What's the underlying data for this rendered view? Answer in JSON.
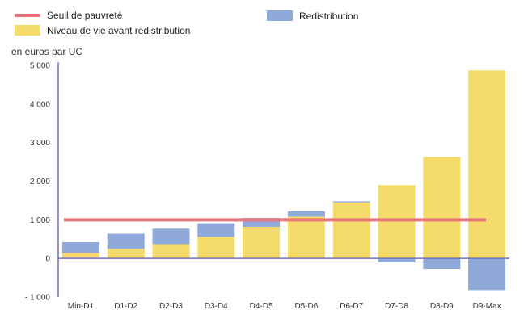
{
  "chart_data": {
    "type": "bar",
    "y_unit_label": "en euros par UC",
    "ylim": [
      -1000,
      5000
    ],
    "y_ticks": [
      "5 000",
      "4 000",
      "3 000",
      "2 000",
      "1 000",
      "0",
      "- 1 000"
    ],
    "y_tick_values": [
      5000,
      4000,
      3000,
      2000,
      1000,
      0,
      -1000
    ],
    "categories": [
      "Min-D1",
      "D1-D2",
      "D2-D3",
      "D3-D4",
      "D4-D5",
      "D5-D6",
      "D6-D7",
      "D7-D8",
      "D8-D9",
      "D9-Max"
    ],
    "series": [
      {
        "name": "Niveau de vie avant redistribution",
        "color": "#F5DB6A",
        "values": [
          150,
          250,
          370,
          560,
          820,
          1080,
          1450,
          1900,
          2630,
          4870
        ]
      },
      {
        "name": "Redistribution",
        "color": "#8FAAD8",
        "values": [
          270,
          390,
          400,
          350,
          230,
          140,
          30,
          -100,
          -270,
          -820
        ]
      }
    ],
    "reference_line": {
      "name": "Seuil de pauvreté",
      "value": 1000,
      "color": "#E8757A"
    },
    "legend": {
      "position": "top",
      "items": [
        {
          "label": "Seuil de pauvreté",
          "kind": "line"
        },
        {
          "label": "Redistribution",
          "kind": "box"
        },
        {
          "label": "Niveau de vie avant redistribution",
          "kind": "box"
        }
      ]
    },
    "grid": false
  }
}
